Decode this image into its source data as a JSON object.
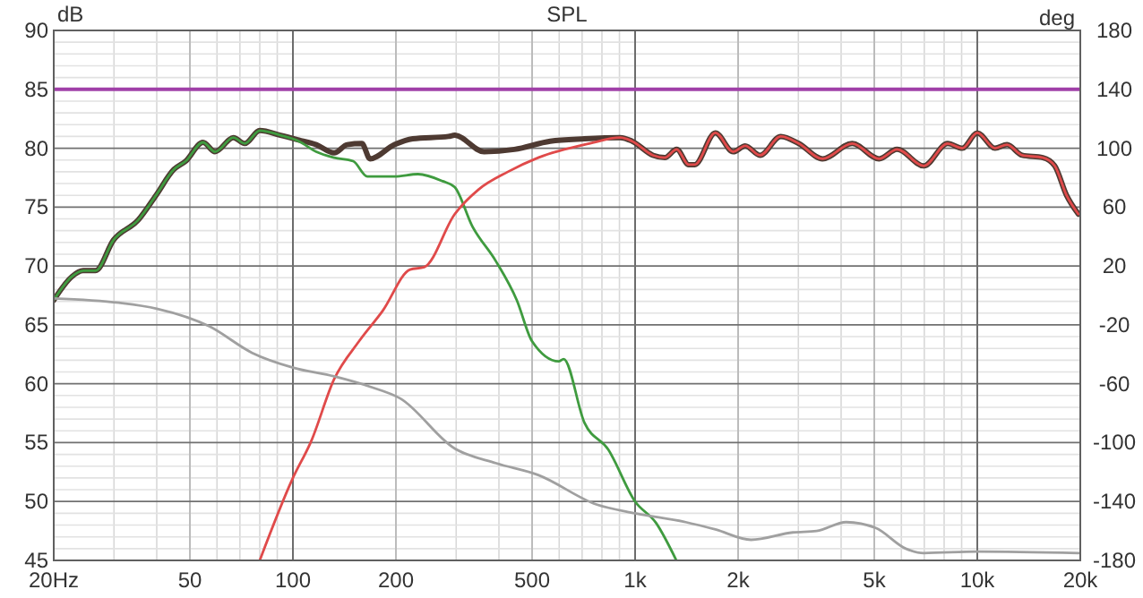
{
  "chart_data": {
    "type": "line",
    "title": "SPL",
    "ylabel": "dB",
    "y2label": "deg",
    "log": "x",
    "grid": true,
    "marker": "none",
    "line_style": "solid",
    "xlim": [
      20,
      20000
    ],
    "xticks": [
      {
        "value": 20,
        "label": "20Hz"
      },
      50,
      100,
      200,
      500,
      {
        "value": 1000,
        "label": "1k"
      },
      {
        "value": 2000,
        "label": "2k"
      },
      {
        "value": 5000,
        "label": "5k"
      },
      {
        "value": 10000,
        "label": "10k"
      },
      {
        "value": 20000,
        "label": "20k"
      }
    ],
    "ylim": [
      45,
      90
    ],
    "yticks": [
      45,
      50,
      55,
      60,
      65,
      70,
      75,
      80,
      85,
      90
    ],
    "y2lim": [
      -180,
      180
    ],
    "y2ticks": [
      -180,
      -140,
      -100,
      -60,
      -20,
      20,
      60,
      100,
      140,
      180
    ],
    "ref_lines": [
      {
        "axis": "y",
        "value": 85,
        "color": "#a040a8"
      }
    ],
    "series": [
      {
        "color": "#4e3a32",
        "x": [
          20,
          22.6,
          24.4,
          26.5,
          29.9,
          35.3,
          39.8,
          44.9,
          48.6,
          54.6,
          59.2,
          67,
          72.3,
          80,
          92,
          104,
          117,
          132,
          144,
          159,
          168,
          198,
          224,
          285,
          297,
          362,
          444,
          565,
          711,
          905,
          980,
          1128,
          1221,
          1323,
          1434,
          1493,
          1716,
          1935,
          2098,
          2318,
          2666,
          3007,
          3530,
          4310,
          5165,
          5827,
          6979,
          8189,
          9047,
          10000,
          11270,
          12215,
          13520,
          15550,
          16840,
          18230,
          19750
        ],
        "values": [
          67.1,
          69.1,
          69.6,
          69.6,
          72.2,
          73.9,
          76,
          78.2,
          78.9,
          80.5,
          79.7,
          80.9,
          80.4,
          81.5,
          81.1,
          80.7,
          80.3,
          79.6,
          80.3,
          80.4,
          79.1,
          80.3,
          80.8,
          81,
          81.1,
          79.7,
          79.9,
          80.6,
          80.8,
          80.9,
          80.6,
          79.4,
          79.2,
          79.9,
          78.6,
          78.6,
          81.3,
          79.7,
          80.2,
          79.4,
          81,
          80.4,
          79.1,
          80.4,
          79.1,
          79.9,
          78.5,
          80.4,
          80,
          81.3,
          80,
          80.3,
          79.4,
          79.2,
          78.5,
          76,
          74.4
        ]
      },
      {
        "color": "#3f9b3f",
        "x": [
          20,
          22.6,
          24.4,
          26.5,
          29.9,
          35.3,
          39.8,
          44.9,
          48.6,
          54.6,
          59.2,
          67,
          72.3,
          80,
          92,
          104,
          117,
          132,
          150,
          165,
          198,
          232,
          274,
          297,
          334,
          392,
          451,
          500,
          598,
          618,
          711,
          835,
          1000,
          1150,
          1320
        ],
        "values": [
          67.1,
          69.1,
          69.6,
          69.6,
          72.2,
          73.9,
          76,
          78.2,
          78.9,
          80.5,
          79.7,
          80.9,
          80.4,
          81.5,
          81.1,
          80.6,
          79.7,
          79.2,
          78.9,
          77.6,
          77.6,
          77.8,
          77.2,
          76.7,
          73.4,
          70.4,
          67.1,
          63.6,
          61.9,
          62.1,
          56.7,
          54.4,
          50,
          48.2,
          45
        ]
      },
      {
        "color": "#e04a4a",
        "x": [
          80,
          100,
          113,
          132,
          156,
          183,
          220,
          242,
          297,
          349,
          425,
          521,
          735,
          905,
          980,
          1128,
          1221,
          1323,
          1434,
          1493,
          1716,
          1935,
          2098,
          2318,
          2666,
          3007,
          3530,
          4310,
          5165,
          5827,
          6979,
          8189,
          9047,
          10000,
          11270,
          12215,
          13520,
          15550,
          16840,
          18230,
          19750
        ],
        "values": [
          45,
          52,
          55.1,
          60.4,
          63.6,
          66.2,
          69.7,
          69.9,
          74.4,
          76.5,
          78,
          79.2,
          80.4,
          80.9,
          80.6,
          79.4,
          79.2,
          79.9,
          78.6,
          78.6,
          81.3,
          79.7,
          80.2,
          79.4,
          81,
          80.4,
          79.1,
          80.4,
          79.1,
          79.9,
          78.5,
          80.4,
          80,
          81.3,
          80,
          80.3,
          79.4,
          79.2,
          78.5,
          76,
          74.4
        ]
      },
      {
        "color": "#a0a0a0",
        "axis": "y2",
        "x": [
          20,
          31,
          40,
          57,
          76,
          100,
          132,
          168,
          206,
          297,
          393,
          521,
          771,
          1000,
          1405,
          1717,
          2183,
          2890,
          3390,
          4140,
          5050,
          6180,
          6970,
          10000,
          19800
        ],
        "values": [
          -2,
          -5,
          -9,
          -21,
          -39,
          -49,
          -55,
          -62,
          -70,
          -104,
          -114,
          -122,
          -142,
          -148,
          -154,
          -159,
          -166,
          -161,
          -160,
          -154,
          -158,
          -172,
          -175,
          -174,
          -175
        ]
      }
    ]
  }
}
